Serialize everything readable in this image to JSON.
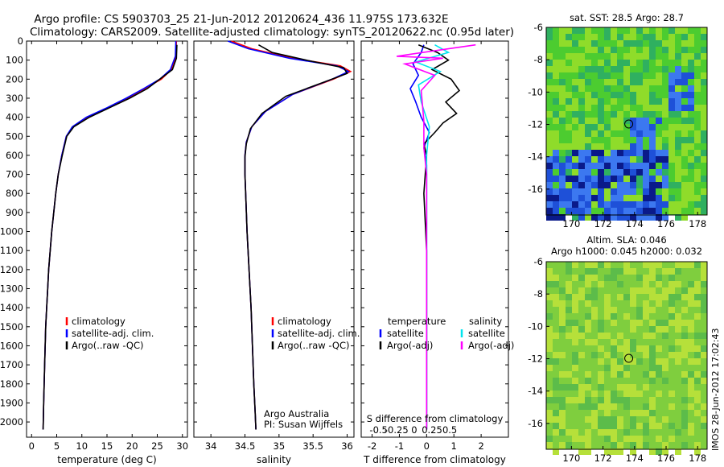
{
  "title_line1": "Argo profile: CS 5903703_25 21-Jun-2012 20120624_436 11.975S 173.632E",
  "title_line2": "Climatology: CARS2009. Satellite-adjusted climatology: synTS_20120622.nc (0.95d later)",
  "sidebar_text": "IMOS 28-Jun-2012 17:02:43",
  "colors": {
    "climatology": "#ff0000",
    "satellite": "#0000ff",
    "argo": "#000000",
    "sal_satellite": "#00e5ee",
    "sal_argo": "#ff00ff"
  },
  "chart_data": [
    {
      "id": "temperature",
      "type": "line",
      "xlabel": "temperature (deg C)",
      "ylabel": "",
      "xlim": [
        -1,
        31
      ],
      "ylim": [
        2080,
        0
      ],
      "x_ticks": [
        0,
        5,
        10,
        15,
        20,
        25,
        30
      ],
      "y_ticks": [
        0,
        100,
        200,
        300,
        400,
        500,
        600,
        700,
        800,
        900,
        1000,
        1100,
        1200,
        1300,
        1400,
        1500,
        1600,
        1700,
        1800,
        1900,
        2000
      ],
      "legend": [
        "climatology",
        "satellite-adj. clim.",
        "Argo(..raw -QC)"
      ],
      "series": [
        {
          "name": "climatology",
          "color_key": "climatology",
          "x": [
            28.8,
            28.7,
            27.8,
            25.8,
            22.5,
            19.0,
            15.2,
            11.0,
            8.2,
            6.9,
            6.0,
            5.3,
            4.8,
            4.4,
            4.0,
            3.7,
            3.4,
            3.2,
            3.0,
            2.8,
            2.6,
            2.4,
            2.3
          ],
          "y": [
            0,
            80,
            150,
            200,
            250,
            300,
            350,
            400,
            450,
            500,
            600,
            700,
            800,
            900,
            1000,
            1100,
            1200,
            1300,
            1400,
            1500,
            1700,
            1900,
            2040
          ]
        },
        {
          "name": "satellite-adj. clim.",
          "color_key": "satellite",
          "x": [
            28.7,
            28.6,
            27.6,
            25.5,
            22.3,
            18.8,
            15.0,
            10.9,
            8.1,
            6.9,
            6.0,
            5.3,
            4.8,
            4.4,
            4.0,
            3.7,
            3.4,
            3.2,
            3.0,
            2.8,
            2.6,
            2.4,
            2.3
          ],
          "y": [
            0,
            80,
            150,
            200,
            250,
            300,
            350,
            400,
            450,
            500,
            600,
            700,
            800,
            900,
            1000,
            1100,
            1200,
            1300,
            1400,
            1500,
            1700,
            1900,
            2040
          ]
        },
        {
          "name": "Argo(..raw -QC)",
          "color_key": "argo",
          "x": [
            28.9,
            28.8,
            28.0,
            25.5,
            23.0,
            19.5,
            15.5,
            11.5,
            8.4,
            7.0,
            6.1,
            5.3,
            4.8,
            4.4,
            4.0,
            3.7,
            3.4,
            3.2,
            3.0,
            2.8,
            2.6,
            2.4,
            2.3
          ],
          "y": [
            20,
            90,
            150,
            200,
            250,
            300,
            350,
            400,
            450,
            500,
            600,
            700,
            800,
            900,
            1000,
            1100,
            1200,
            1300,
            1400,
            1500,
            1700,
            1900,
            2040
          ]
        }
      ]
    },
    {
      "id": "salinity",
      "type": "line",
      "xlabel": "salinity",
      "ylabel": "",
      "xlim": [
        33.75,
        36.1
      ],
      "ylim": [
        2080,
        0
      ],
      "x_ticks": [
        34,
        34.5,
        35,
        35.5,
        36
      ],
      "x_tick_labels": [
        "34",
        "34.5",
        "35",
        "35.5",
        "36"
      ],
      "legend": [
        "climatology",
        "satellite-adj. clim.",
        "Argo(..raw -QC)"
      ],
      "annotations": [
        "Argo Australia",
        "PI: Susan Wijffels"
      ],
      "series": [
        {
          "name": "climatology",
          "color_key": "climatology",
          "x": [
            34.3,
            34.6,
            35.2,
            35.9,
            36.05,
            35.8,
            35.2,
            34.8,
            34.6,
            34.52,
            34.5,
            34.5,
            34.51,
            34.53,
            34.56,
            34.59,
            34.61,
            34.63,
            34.65,
            34.66
          ],
          "y": [
            0,
            40,
            90,
            130,
            160,
            200,
            280,
            370,
            450,
            530,
            600,
            700,
            800,
            1000,
            1200,
            1400,
            1600,
            1800,
            1950,
            2040
          ]
        },
        {
          "name": "satellite-adj. clim.",
          "color_key": "satellite",
          "x": [
            34.25,
            34.55,
            35.15,
            35.85,
            36.02,
            35.78,
            35.2,
            34.8,
            34.6,
            34.52,
            34.5,
            34.5,
            34.51,
            34.53,
            34.56,
            34.59,
            34.61,
            34.63,
            34.65,
            34.66
          ],
          "y": [
            0,
            40,
            90,
            130,
            160,
            200,
            280,
            370,
            450,
            530,
            600,
            700,
            800,
            1000,
            1200,
            1400,
            1600,
            1800,
            1950,
            2040
          ]
        },
        {
          "name": "Argo(..raw -QC)",
          "color_key": "argo",
          "x": [
            34.7,
            34.9,
            35.4,
            35.95,
            36.0,
            35.7,
            35.1,
            34.75,
            34.58,
            34.52,
            34.5,
            34.5,
            34.51,
            34.53,
            34.56,
            34.59,
            34.61,
            34.63,
            34.65,
            34.66
          ],
          "y": [
            20,
            60,
            100,
            140,
            170,
            210,
            290,
            380,
            460,
            540,
            610,
            700,
            800,
            1000,
            1200,
            1400,
            1600,
            1800,
            1950,
            2040
          ]
        }
      ]
    },
    {
      "id": "difference",
      "type": "line",
      "xlabel": "T difference from climatology",
      "x2label": "S difference from climatology",
      "xlim": [
        -2.4,
        3.0
      ],
      "ylim": [
        2080,
        0
      ],
      "x_ticks": [
        -2,
        -1,
        0,
        1,
        2
      ],
      "x2_ticks": [
        -0.5,
        -0.25,
        0,
        0.25,
        0.5
      ],
      "x2_tick_labels": [
        "-0.5",
        "-0.25",
        "0",
        "0.25",
        "0.5"
      ],
      "legend_titles": [
        "temperature",
        "salinity"
      ],
      "legend": [
        "satellite",
        "Argo(-adj)",
        "satellite",
        "Argo(-adj)"
      ],
      "series": [
        {
          "name": "T satellite",
          "color_key": "satellite",
          "x": [
            -0.1,
            -0.2,
            -0.5,
            -0.3,
            -0.6,
            -0.4,
            -0.2,
            0.1,
            -0.1,
            0.0,
            0.0,
            0.0,
            0.0,
            0.0
          ],
          "y": [
            20,
            60,
            120,
            180,
            250,
            320,
            400,
            480,
            560,
            650,
            800,
            1000,
            1500,
            2040
          ]
        },
        {
          "name": "T Argo(-adj)",
          "color_key": "argo",
          "x": [
            -0.3,
            0.4,
            0.8,
            0.2,
            0.9,
            1.2,
            0.7,
            1.1,
            0.6,
            0.3,
            -0.1,
            0.0,
            -0.1,
            0.0,
            0.0,
            0.0
          ],
          "y": [
            20,
            60,
            100,
            150,
            200,
            260,
            320,
            380,
            430,
            480,
            540,
            600,
            800,
            1100,
            1500,
            2040
          ]
        },
        {
          "name": "S satellite",
          "color_key": "sal_satellite",
          "x": [
            0.3,
            0.8,
            -0.4,
            0.5,
            -0.3,
            -0.2,
            0.1,
            0.0,
            0.0,
            0.0,
            0.0
          ],
          "y": [
            20,
            60,
            110,
            160,
            230,
            320,
            450,
            600,
            800,
            1200,
            2040
          ]
        },
        {
          "name": "S Argo(-adj)",
          "color_key": "sal_argo",
          "x": [
            1.8,
            -1.1,
            0.6,
            -0.8,
            0.3,
            -0.2,
            -0.1,
            -0.1,
            0.0,
            0.0,
            0.0
          ],
          "y": [
            20,
            80,
            90,
            120,
            180,
            260,
            420,
            560,
            700,
            1000,
            2040
          ]
        }
      ]
    },
    {
      "id": "sst_map",
      "type": "heatmap",
      "title": "sat. SST: 28.5 Argo: 28.7",
      "xlim": [
        168.4,
        178.6
      ],
      "ylim": [
        -17.6,
        -6
      ],
      "x_ticks": [
        170,
        172,
        174,
        176,
        178
      ],
      "y_ticks": [
        -6,
        -8,
        -10,
        -12,
        -14,
        -16
      ],
      "marker": {
        "lon": 173.632,
        "lat": -11.975
      }
    },
    {
      "id": "sla_map",
      "type": "heatmap",
      "title_line1": "Altim. SLA: 0.046",
      "title_line2": "Argo h1000: 0.045 h2000: 0.032",
      "xlim": [
        168.4,
        178.6
      ],
      "ylim": [
        -17.6,
        -6
      ],
      "x_ticks": [
        170,
        172,
        174,
        176,
        178
      ],
      "y_ticks": [
        -6,
        -8,
        -10,
        -12,
        -14,
        -16
      ],
      "marker": {
        "lon": 173.632,
        "lat": -11.975
      }
    }
  ]
}
